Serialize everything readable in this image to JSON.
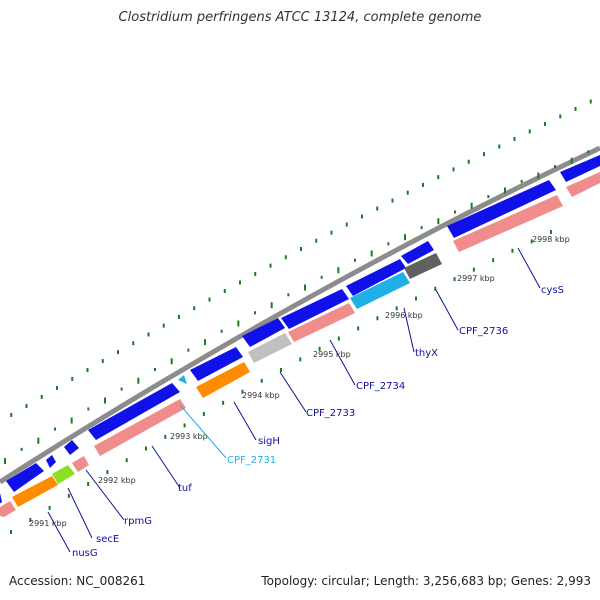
{
  "title": "Clostridium perfringens ATCC 13124, complete genome",
  "footer": {
    "accession": "Accession: NC_008261",
    "summary": "Topology: circular; Length: 3,256,683 bp; Genes: 2,993"
  },
  "colors": {
    "backbone": "#8c8c8c",
    "tick": "#1e7a1e",
    "feature_forward": "#1010e8",
    "feature_reverse": "#f08c8c",
    "label": "#1010a0",
    "label_highlight": "#20b0e8"
  },
  "map": {
    "kbp_labels": [
      "2991 kbp",
      "2992 kbp",
      "2993 kbp",
      "2994 kbp",
      "2995 kbp",
      "2996 kbp",
      "2997 kbp",
      "2998 kbp"
    ],
    "gene_labels": [
      "nusG",
      "secE",
      "rpmG",
      "tuf",
      "CPF_2731",
      "sigH",
      "CPF_2733",
      "CPF_2734",
      "thyX",
      "CPF_2736",
      "cysS"
    ]
  }
}
